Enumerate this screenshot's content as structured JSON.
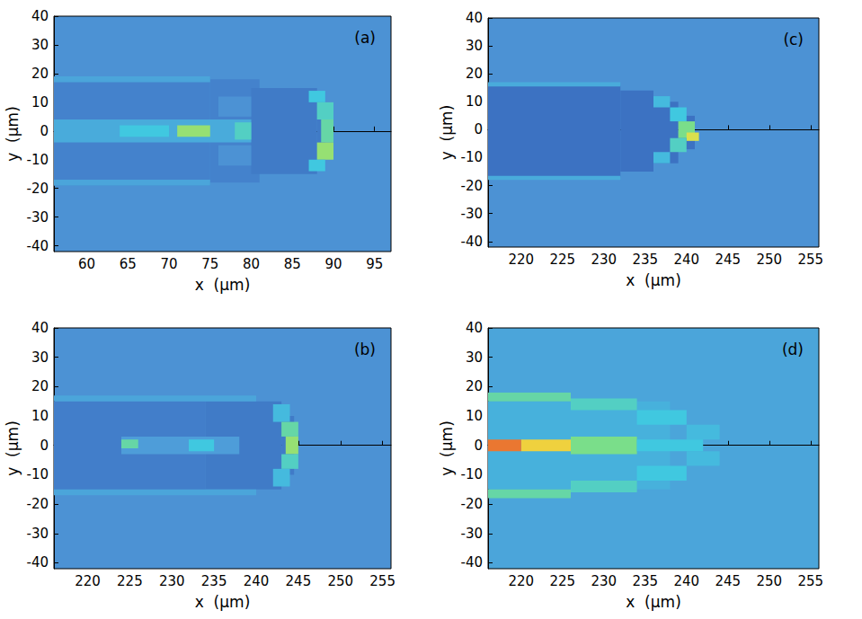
{
  "chart_data": [
    {
      "type": "heatmap",
      "title": "(a)",
      "x_label": "x  (μm)",
      "y_label": "y  (μm)",
      "xlim": [
        56,
        97
      ],
      "xticks": [
        60,
        65,
        70,
        75,
        80,
        85,
        90,
        95
      ],
      "ylim": [
        -42,
        40
      ],
      "yticks": [
        -40,
        -30,
        -20,
        -10,
        0,
        10,
        20,
        30,
        40
      ],
      "color_range": [
        0,
        1
      ],
      "background_level": 0.3,
      "cells": [
        [
          56,
          75,
          -19,
          19,
          0.22
        ],
        [
          75,
          81,
          -18,
          18,
          0.22
        ],
        [
          80,
          88,
          -15,
          15,
          0.18
        ],
        [
          88,
          89,
          -10,
          10,
          0.18
        ],
        [
          56,
          75,
          17,
          19,
          0.38
        ],
        [
          56,
          75,
          -19,
          -17,
          0.38
        ],
        [
          76,
          80,
          5,
          12,
          0.3
        ],
        [
          76,
          80,
          -12,
          -5,
          0.3
        ],
        [
          56,
          80,
          -4,
          4,
          0.4
        ],
        [
          64,
          70,
          -2,
          2,
          0.5
        ],
        [
          71,
          75,
          -2,
          2,
          0.7
        ],
        [
          78,
          80,
          -3,
          3,
          0.55
        ],
        [
          87,
          89,
          10,
          14,
          0.5
        ],
        [
          88,
          90,
          4,
          10,
          0.55
        ],
        [
          88.5,
          90,
          -4,
          4,
          0.6
        ],
        [
          88,
          90,
          -10,
          -4,
          0.7
        ],
        [
          87,
          89,
          -14,
          -10,
          0.5
        ]
      ]
    },
    {
      "type": "heatmap",
      "title": "(b)",
      "x_label": "x  (μm)",
      "y_label": "y  (μm)",
      "xlim": [
        216,
        256
      ],
      "xticks": [
        220,
        225,
        230,
        235,
        240,
        245,
        250,
        255
      ],
      "ylim": [
        -42,
        40
      ],
      "yticks": [
        -40,
        -30,
        -20,
        -10,
        0,
        10,
        20,
        30,
        40
      ],
      "color_range": [
        0,
        1
      ],
      "background_level": 0.3,
      "cells": [
        [
          216,
          234,
          -16,
          15,
          0.2
        ],
        [
          234,
          243,
          -15,
          15,
          0.18
        ],
        [
          243,
          244.5,
          -10,
          10,
          0.18
        ],
        [
          216,
          240,
          15,
          17,
          0.38
        ],
        [
          216,
          240,
          -17,
          -15,
          0.38
        ],
        [
          224,
          238,
          -3,
          3,
          0.35
        ],
        [
          224,
          226,
          -1,
          2,
          0.6
        ],
        [
          232,
          235,
          -2,
          2,
          0.5
        ],
        [
          242,
          244,
          8,
          14,
          0.45
        ],
        [
          243,
          245,
          3,
          8,
          0.6
        ],
        [
          243.5,
          245,
          -3,
          3,
          0.7
        ],
        [
          243,
          245,
          -8,
          -3,
          0.55
        ],
        [
          242,
          244,
          -14,
          -8,
          0.45
        ]
      ]
    },
    {
      "type": "heatmap",
      "title": "(c)",
      "x_label": "x  (μm)",
      "y_label": "y  (μm)",
      "xlim": [
        216,
        256
      ],
      "xticks": [
        220,
        225,
        230,
        235,
        240,
        245,
        250,
        255
      ],
      "ylim": [
        -42,
        40
      ],
      "yticks": [
        -40,
        -30,
        -20,
        -10,
        0,
        10,
        20,
        30,
        40
      ],
      "color_range": [
        0,
        1
      ],
      "background_level": 0.3,
      "cells": [
        [
          216,
          232,
          -17,
          16,
          0.15
        ],
        [
          232,
          236,
          -15,
          14,
          0.15
        ],
        [
          236,
          239,
          -12,
          10,
          0.15
        ],
        [
          239,
          241,
          -7,
          5,
          0.15
        ],
        [
          216,
          232,
          15.5,
          17,
          0.4
        ],
        [
          216,
          232,
          -18,
          -16.5,
          0.4
        ],
        [
          236,
          238,
          8,
          12,
          0.45
        ],
        [
          238,
          240,
          3,
          8,
          0.5
        ],
        [
          239,
          241,
          -3,
          3,
          0.65
        ],
        [
          240,
          241.5,
          -4,
          -1,
          0.8
        ],
        [
          238,
          240,
          -8,
          -3,
          0.55
        ],
        [
          236,
          238,
          -12,
          -8,
          0.45
        ]
      ]
    },
    {
      "type": "heatmap",
      "title": "(d)",
      "x_label": "x  (μm)",
      "y_label": "y  (μm)",
      "xlim": [
        216,
        256
      ],
      "xticks": [
        220,
        225,
        230,
        235,
        240,
        245,
        250,
        255
      ],
      "ylim": [
        -42,
        40
      ],
      "yticks": [
        -40,
        -30,
        -20,
        -10,
        0,
        10,
        20,
        30,
        40
      ],
      "color_range": [
        0,
        1
      ],
      "background_level": 0.38,
      "cells": [
        [
          216,
          238,
          -15,
          15,
          0.42
        ],
        [
          216,
          226,
          15,
          18,
          0.6
        ],
        [
          226,
          234,
          12,
          16,
          0.55
        ],
        [
          234,
          240,
          7,
          12,
          0.5
        ],
        [
          240,
          244,
          2,
          7,
          0.45
        ],
        [
          216,
          226,
          -18,
          -15,
          0.6
        ],
        [
          226,
          234,
          -16,
          -12,
          0.55
        ],
        [
          234,
          240,
          -12,
          -7,
          0.5
        ],
        [
          240,
          244,
          -7,
          -2,
          0.45
        ],
        [
          226,
          234,
          -3,
          3,
          0.65
        ],
        [
          234,
          242,
          -2,
          2,
          0.5
        ],
        [
          220,
          226,
          -2,
          2,
          0.85
        ],
        [
          216,
          220,
          -2,
          2,
          0.95
        ]
      ]
    }
  ]
}
